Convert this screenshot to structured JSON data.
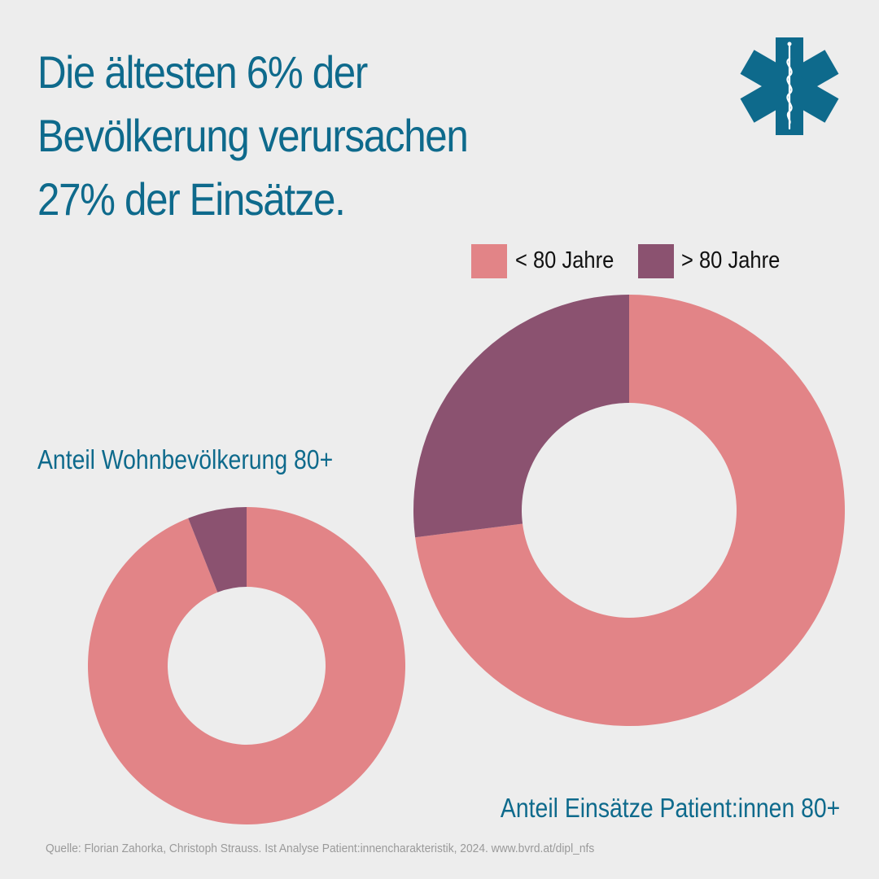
{
  "headline": {
    "lines": [
      "Die ältesten 6% der",
      "Bevölkerung verursachen",
      "27% der Einsätze."
    ]
  },
  "logo": {
    "icon": "star-of-life-icon",
    "color": "#0e6a8c"
  },
  "legend": {
    "items": [
      {
        "label": "< 80 Jahre",
        "color": "#e28487"
      },
      {
        "label": "> 80 Jahre",
        "color": "#8b5270"
      }
    ]
  },
  "chart_data": [
    {
      "type": "pie",
      "title": "Anteil Wohnbevölkerung 80+",
      "donut": true,
      "series": [
        {
          "name": "< 80 Jahre",
          "value": 94,
          "color": "#e28487"
        },
        {
          "name": "> 80 Jahre",
          "value": 6,
          "color": "#8b5270"
        }
      ]
    },
    {
      "type": "pie",
      "title": "Anteil Einsätze Patient:innen 80+",
      "donut": true,
      "series": [
        {
          "name": "< 80 Jahre",
          "value": 73,
          "color": "#e28487"
        },
        {
          "name": "> 80 Jahre",
          "value": 27,
          "color": "#8b5270"
        }
      ]
    }
  ],
  "source": "Quelle: Florian Zahorka, Christoph Strauss. Ist Analyse Patient:innencharakteristik, 2024. www.bvrd.at/dipl_nfs"
}
